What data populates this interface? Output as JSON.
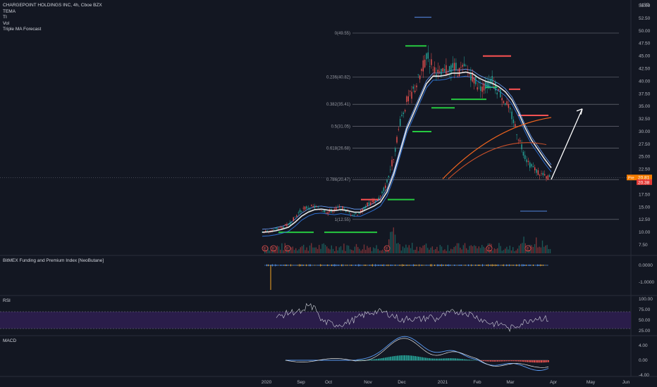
{
  "header": {
    "symbol_line": "CHARGEPOINT HOLDINGS INC, 4h, Cboe BZX",
    "indicators": [
      "TEMA",
      "TI",
      "Vol",
      "Triple MA Forecast"
    ],
    "currency": "USD"
  },
  "colors": {
    "background": "#131722",
    "price_line": "#e8e8e8",
    "ma_blue": "#2f6fd0",
    "ma_light_blue": "#6aa2ff",
    "forecast_orange": "#f0641e",
    "fib_line": "#787b86",
    "arrow": "#ffffff",
    "support": "#26c940",
    "resistance": "#ff5252",
    "rsi_band": "#2a1d4a",
    "macd_hist_up": "#26a69a",
    "macd_hist_down": "#ef5350",
    "last_price_label": "#f57c00"
  },
  "fib_levels": [
    {
      "label": "0(49.55)",
      "value": 49.55
    },
    {
      "label": "0.236(40.82)",
      "value": 40.82
    },
    {
      "label": "0.382(35.41)",
      "value": 35.41
    },
    {
      "label": "0.5(31.05)",
      "value": 31.05
    },
    {
      "label": "0.618(26.68)",
      "value": 26.68
    },
    {
      "label": "0.786(20.47)",
      "value": 20.47
    },
    {
      "label": "1(12.55)",
      "value": 12.55
    }
  ],
  "price_axis": {
    "ticks": [
      "55.00",
      "52.50",
      "50.00",
      "47.50",
      "45.00",
      "42.50",
      "40.00",
      "37.50",
      "35.00",
      "32.50",
      "30.00",
      "27.50",
      "25.00",
      "22.50",
      "20.00",
      "17.50",
      "15.00",
      "12.50",
      "10.00",
      "7.50"
    ],
    "current_label": "20.81",
    "current_value": 20.81,
    "pre_label": "Pre",
    "second_label": "20.38",
    "second_value": 20.38
  },
  "time_axis": {
    "ticks": [
      "2020",
      "Sep",
      "Oct",
      "Nov",
      "Dec",
      "2021",
      "Feb",
      "Mar",
      "Apr",
      "May",
      "Jun"
    ]
  },
  "chart_data": {
    "type": "line",
    "title": "CHARGEPOINT HOLDINGS INC, 4h, Cboe BZX",
    "xlabel": "",
    "ylabel": "USD",
    "ylim": [
      5,
      57
    ],
    "x_ticks": [
      "2020",
      "Sep",
      "Oct",
      "Nov",
      "Dec",
      "2021",
      "Feb",
      "Mar",
      "Apr",
      "May",
      "Jun"
    ],
    "series": [
      {
        "values": [
          10.0,
          10.3,
          10.5,
          11.0,
          11.5,
          13.0,
          14.5,
          15.0,
          15.0,
          14.5,
          14.0,
          14.5,
          15.0,
          14.0,
          13.5,
          14.0,
          15.5,
          16.0,
          17.0,
          20.0,
          25.0,
          32.0,
          36.0,
          38.0,
          41.0,
          45.0,
          43.0,
          41.0,
          42.0,
          43.0,
          42.0,
          42.5,
          41.0,
          39.0,
          39.0,
          40.0,
          38.0,
          36.0,
          33.0,
          29.0,
          25.0,
          23.0,
          22.0,
          21.0,
          20.8
        ]
      },
      {
        "name": "TEMA",
        "values": [
          10.0,
          10.1,
          10.3,
          10.6,
          11.0,
          12.0,
          13.2,
          14.0,
          14.5,
          14.6,
          14.4,
          14.3,
          14.5,
          14.3,
          14.0,
          14.0,
          14.6,
          15.2,
          16.0,
          18.0,
          21.5,
          26.0,
          30.5,
          33.5,
          36.5,
          39.5,
          41.0,
          41.0,
          41.2,
          41.6,
          41.6,
          41.8,
          41.5,
          40.6,
          40.0,
          39.6,
          38.9,
          37.9,
          36.3,
          33.8,
          30.8,
          28.3,
          26.4,
          24.5,
          22.8
        ]
      }
    ],
    "triple_ma_forecast": {
      "x_months": [
        "Mar",
        "Apr"
      ],
      "start": 20.5,
      "end": 33.0
    },
    "forecast_arrow": {
      "from": 20.5,
      "to": 34.5
    },
    "support_levels": [
      10.0,
      10.0,
      16.5,
      30.0,
      34.7,
      36.4,
      38.8,
      37.9
    ],
    "resistance_levels": [
      45.0,
      38.4,
      33.2
    ],
    "earnings_markers": [
      "E",
      "E",
      "E",
      "E",
      "E",
      "E"
    ],
    "volume": {
      "present": true
    },
    "panes": [
      {
        "name": "BitMEX Funding and Premium Index [NeoButane]",
        "ticks": [
          "0.0000",
          "-1.0000"
        ]
      },
      {
        "name": "RSI",
        "ticks": [
          "100.00",
          "75.00",
          "50.00",
          "25.00"
        ]
      },
      {
        "name": "MACD",
        "ticks": [
          "4.00",
          "0.00",
          "-4.00"
        ]
      }
    ]
  },
  "panes": {
    "funding": {
      "title": "BitMEX Funding and Premium Index [NeoButane]",
      "ticks": [
        "0.0000",
        "-1.0000"
      ]
    },
    "rsi": {
      "title": "RSI",
      "ticks": [
        "100.00",
        "75.00",
        "50.00",
        "25.00"
      ]
    },
    "macd": {
      "title": "MACD",
      "ticks": [
        "4.00",
        "0.00",
        "-4.00"
      ]
    }
  }
}
